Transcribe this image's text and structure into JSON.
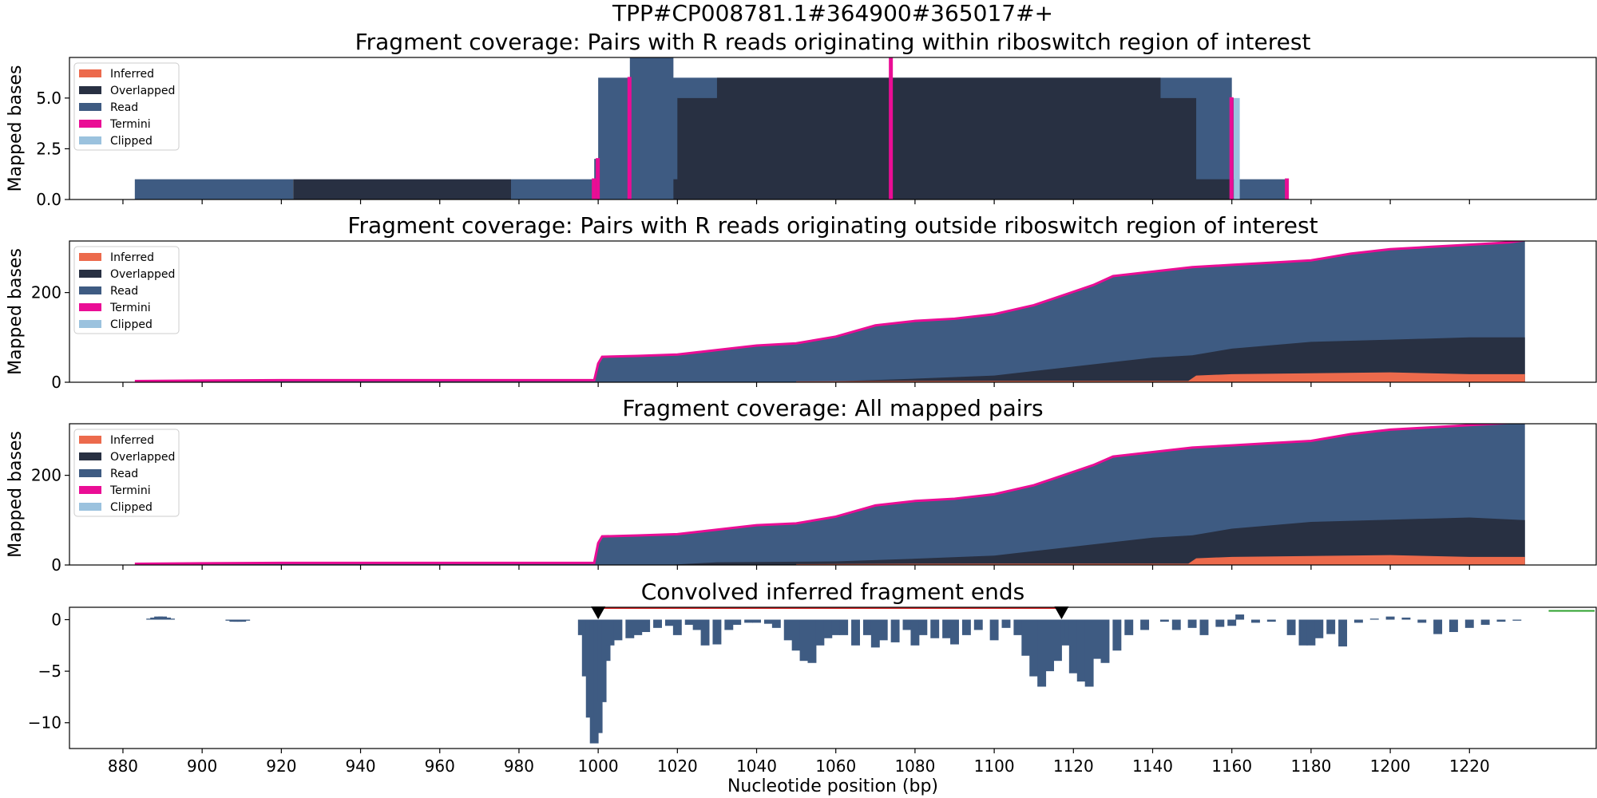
{
  "figure": {
    "suptitle": "TPP#CP008781.1#364900#365017#+",
    "xlabel": "Nucleotide position (bp)",
    "x_ticks": [
      880,
      900,
      920,
      940,
      960,
      980,
      1000,
      1020,
      1040,
      1060,
      1080,
      1100,
      1120,
      1140,
      1160,
      1180,
      1200,
      1220
    ],
    "xlim": [
      866.5,
      1252
    ]
  },
  "colors": {
    "Inferred": "#ec6a4c",
    "Overlapped": "#283042",
    "Read": "#3e5b82",
    "Termini": "#ea0d95",
    "Clipped": "#9bc2de",
    "convolved": "#3e5b82",
    "region_line": "#d62728",
    "marker": "#000000",
    "green_line": "#2ca02c"
  },
  "legend": [
    "Inferred",
    "Overlapped",
    "Read",
    "Termini",
    "Clipped"
  ],
  "chart_data": [
    {
      "type": "area",
      "title": "Fragment coverage: Pairs with R reads originating within riboswitch region of interest",
      "ylabel": "Mapped bases",
      "ylim": [
        0,
        7
      ],
      "y_ticks": [
        0.0,
        2.5,
        5.0
      ],
      "y_tick_labels": [
        "0.0",
        "2.5",
        "5.0"
      ],
      "series": [
        {
          "name": "Read",
          "x": [
            883,
            923,
            923,
            978,
            978,
            999,
            999,
            1000,
            1000,
            1008,
            1008,
            1019,
            1019,
            1074,
            1074,
            1160,
            1160,
            1160.5,
            1160.5,
            1174,
            1174
          ],
          "values": [
            1,
            1,
            0,
            0,
            1,
            1,
            2,
            2,
            6,
            6,
            7,
            7,
            6,
            6,
            6,
            6,
            5,
            5,
            1,
            1,
            0
          ]
        },
        {
          "name": "Overlapped",
          "x": [
            923,
            978,
            978,
            1019,
            1019,
            1020,
            1020,
            1030,
            1030,
            1142,
            1142,
            1151,
            1151,
            1160,
            1160
          ],
          "values": [
            1,
            1,
            0,
            0,
            1,
            1,
            5,
            5,
            6,
            6,
            5,
            5,
            1,
            1,
            0
          ]
        },
        {
          "name": "Termini",
          "points": [
            [
              999,
              1
            ],
            [
              1000,
              2
            ],
            [
              1008,
              6
            ],
            [
              1074,
              7
            ],
            [
              1160,
              5
            ],
            [
              1174,
              1
            ]
          ]
        },
        {
          "name": "Clipped",
          "x": [
            1160.5,
            1162
          ],
          "values": [
            5,
            5
          ]
        }
      ]
    },
    {
      "type": "area",
      "title": "Fragment coverage: Pairs with R reads originating outside riboswitch region of interest",
      "ylabel": "Mapped bases",
      "ylim": [
        0,
        315
      ],
      "y_ticks": [
        0,
        200
      ],
      "y_tick_labels": [
        "0",
        "200"
      ],
      "series": [
        {
          "name": "Read",
          "x": [
            883,
            900,
            920,
            940,
            960,
            980,
            999,
            1000,
            1001,
            1010,
            1020,
            1030,
            1040,
            1050,
            1060,
            1070,
            1080,
            1090,
            1100,
            1105,
            1110,
            1115,
            1120,
            1125,
            1130,
            1140,
            1150,
            1160,
            1170,
            1180,
            1190,
            1200,
            1210,
            1220,
            1230,
            1234
          ],
          "values": [
            1,
            2,
            3,
            3,
            3,
            3,
            3,
            40,
            55,
            57,
            60,
            70,
            80,
            85,
            100,
            125,
            135,
            140,
            150,
            160,
            170,
            185,
            200,
            215,
            235,
            245,
            255,
            260,
            265,
            270,
            285,
            295,
            300,
            305,
            310,
            315
          ]
        },
        {
          "name": "Overlapped",
          "x": [
            1060,
            1080,
            1100,
            1120,
            1140,
            1150,
            1160,
            1180,
            1200,
            1220,
            1234
          ],
          "values": [
            2,
            8,
            15,
            35,
            55,
            60,
            75,
            90,
            95,
            100,
            100
          ]
        },
        {
          "name": "Inferred",
          "x": [
            1050,
            1100,
            1149,
            1151,
            1160,
            1180,
            1200,
            1220,
            1234
          ],
          "values": [
            2,
            3,
            3,
            15,
            18,
            20,
            22,
            18,
            18
          ]
        }
      ]
    },
    {
      "type": "area",
      "title": "Fragment coverage: All mapped pairs",
      "ylabel": "Mapped bases",
      "ylim": [
        0,
        315
      ],
      "y_ticks": [
        0,
        200
      ],
      "y_tick_labels": [
        "0",
        "200"
      ],
      "series": [
        {
          "name": "Read",
          "x": [
            883,
            900,
            920,
            940,
            960,
            980,
            999,
            1000,
            1001,
            1010,
            1020,
            1030,
            1040,
            1050,
            1060,
            1070,
            1080,
            1090,
            1100,
            1105,
            1110,
            1115,
            1120,
            1125,
            1130,
            1140,
            1150,
            1160,
            1170,
            1180,
            1190,
            1200,
            1210,
            1220,
            1230,
            1234
          ],
          "values": [
            1,
            2,
            3,
            3,
            3,
            3,
            3,
            47,
            62,
            64,
            67,
            77,
            87,
            91,
            106,
            131,
            141,
            146,
            156,
            166,
            176,
            191,
            206,
            221,
            240,
            250,
            260,
            265,
            270,
            275,
            290,
            300,
            305,
            310,
            315,
            315
          ]
        },
        {
          "name": "Overlapped",
          "x": [
            1019,
            1030,
            1060,
            1080,
            1100,
            1120,
            1140,
            1150,
            1160,
            1180,
            1200,
            1220,
            1234
          ],
          "values": [
            1,
            6,
            8,
            14,
            21,
            41,
            61,
            66,
            81,
            96,
            101,
            106,
            100
          ]
        },
        {
          "name": "Inferred",
          "x": [
            1050,
            1100,
            1149,
            1151,
            1160,
            1180,
            1200,
            1220,
            1234
          ],
          "values": [
            2,
            3,
            3,
            15,
            18,
            20,
            22,
            18,
            18
          ]
        }
      ]
    },
    {
      "type": "bar",
      "title": "Convolved inferred fragment ends",
      "ylabel": "",
      "ylim": [
        -12.5,
        1.2
      ],
      "y_ticks": [
        0,
        -5,
        -10
      ],
      "y_tick_labels": [
        "0",
        "−5",
        "−10"
      ],
      "x": [
        887,
        888,
        889,
        890,
        891,
        892,
        907,
        908,
        909,
        910,
        911,
        996,
        997,
        998,
        999,
        1000,
        1001,
        1002,
        1003,
        1005,
        1008,
        1010,
        1012,
        1015,
        1018,
        1020,
        1023,
        1025,
        1027,
        1030,
        1033,
        1035,
        1038,
        1040,
        1043,
        1045,
        1048,
        1050,
        1052,
        1054,
        1056,
        1058,
        1060,
        1062,
        1065,
        1068,
        1070,
        1072,
        1075,
        1078,
        1080,
        1082,
        1085,
        1088,
        1090,
        1093,
        1096,
        1100,
        1103,
        1106,
        1108,
        1110,
        1112,
        1114,
        1116,
        1118,
        1119,
        1120,
        1122,
        1124,
        1126,
        1128,
        1131,
        1134,
        1138,
        1143,
        1146,
        1150,
        1153,
        1157,
        1160,
        1162,
        1166,
        1170,
        1175,
        1178,
        1180,
        1182,
        1185,
        1188,
        1192,
        1196,
        1200,
        1204,
        1208,
        1212,
        1216,
        1220,
        1224,
        1228,
        1232
      ],
      "values": [
        0.1,
        0.2,
        0.3,
        0.3,
        0.2,
        0.1,
        -0.1,
        -0.2,
        -0.2,
        -0.2,
        -0.1,
        -1.5,
        -5.5,
        -9.5,
        -12,
        -11,
        -8,
        -4,
        -2.5,
        -2,
        -1.8,
        -1.5,
        -1.2,
        -0.8,
        -0.6,
        -1.5,
        -0.5,
        -1,
        -2.5,
        -2.4,
        -1,
        -0.5,
        -0.3,
        -0.3,
        -0.4,
        -0.8,
        -2,
        -3,
        -4,
        -4.2,
        -2.5,
        -1.8,
        -1.5,
        -1.5,
        -2.5,
        -1.5,
        -2.7,
        -2,
        -2.2,
        -1,
        -2.5,
        -1.5,
        -1.8,
        -1.8,
        -2.4,
        -1.5,
        -1,
        -2,
        -0.8,
        -1.5,
        -3.5,
        -5.5,
        -6.5,
        -5,
        -4,
        -2.5,
        -1.8,
        -5.2,
        -6,
        -6.5,
        -3.8,
        -4.2,
        -3,
        -1.5,
        -1,
        -0.2,
        -1,
        -0.8,
        -1.5,
        -0.7,
        -0.6,
        0.5,
        -0.3,
        -0.2,
        -1.5,
        -2.5,
        -2.5,
        -1.8,
        -1.4,
        -2.6,
        -0.3,
        0.1,
        0.3,
        0.2,
        -0.3,
        -1.4,
        -1.2,
        -0.8,
        -0.5,
        -0.2,
        -0.1
      ],
      "markers": [
        1000,
        1117
      ],
      "region_line": [
        1000,
        1117
      ],
      "green_line": [
        1240,
        1252
      ]
    }
  ]
}
